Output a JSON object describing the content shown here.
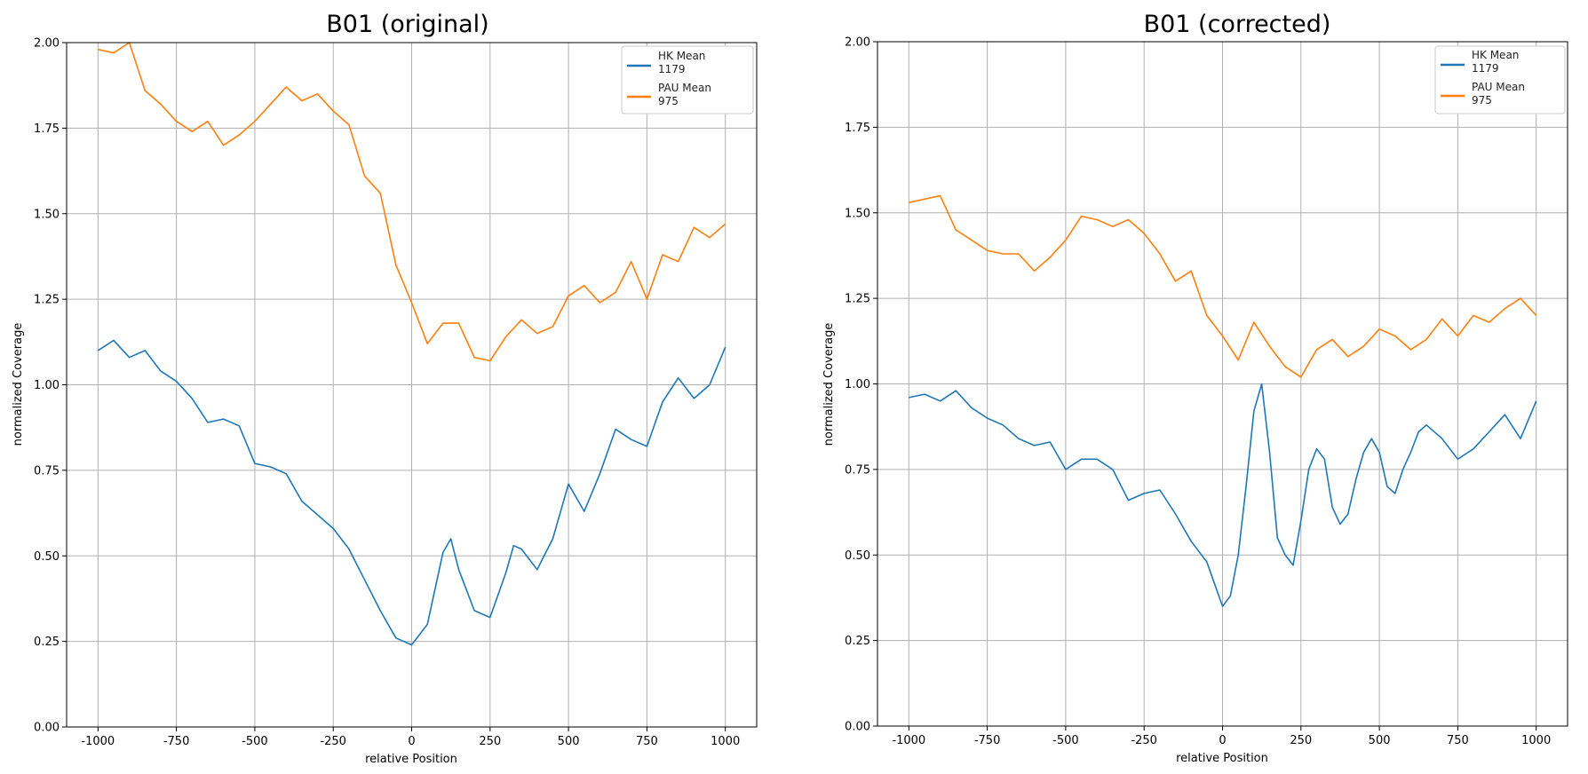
{
  "chart_data": [
    {
      "type": "line",
      "title": "B01 (original)",
      "xlabel": "relative Position",
      "ylabel": "normalized Coverage",
      "xlim": [
        -1100,
        1100
      ],
      "ylim": [
        0,
        2
      ],
      "xticks": [
        -1000,
        -750,
        -500,
        -250,
        0,
        250,
        500,
        750,
        1000
      ],
      "xtick_labels": [
        "-1000",
        "-750",
        "-500",
        "-250",
        "0",
        "250",
        "500",
        "750",
        "1000"
      ],
      "yticks": [
        0,
        0.25,
        0.5,
        0.75,
        1.0,
        1.25,
        1.5,
        1.75,
        2.0
      ],
      "ytick_labels": [
        "0.00",
        "0.25",
        "0.50",
        "0.75",
        "1.00",
        "1.25",
        "1.50",
        "1.75",
        "2.00"
      ],
      "grid": true,
      "legend_position": "top-right",
      "series": [
        {
          "name_line1": "HK Mean",
          "name_line2": "1179",
          "color": "#1f77b4",
          "x": [
            -1000,
            -950,
            -900,
            -850,
            -800,
            -750,
            -700,
            -650,
            -600,
            -550,
            -500,
            -450,
            -400,
            -350,
            -300,
            -250,
            -200,
            -150,
            -100,
            -50,
            0,
            50,
            100,
            125,
            150,
            200,
            250,
            300,
            325,
            350,
            400,
            450,
            500,
            550,
            600,
            650,
            700,
            750,
            800,
            850,
            900,
            950,
            1000
          ],
          "y": [
            1.1,
            1.13,
            1.08,
            1.1,
            1.04,
            1.01,
            0.96,
            0.89,
            0.9,
            0.88,
            0.77,
            0.76,
            0.74,
            0.66,
            0.62,
            0.58,
            0.52,
            0.43,
            0.34,
            0.26,
            0.24,
            0.3,
            0.51,
            0.55,
            0.46,
            0.34,
            0.32,
            0.45,
            0.53,
            0.52,
            0.46,
            0.55,
            0.71,
            0.63,
            0.74,
            0.87,
            0.84,
            0.82,
            0.95,
            1.02,
            0.96,
            1.0,
            1.11
          ]
        },
        {
          "name_line1": "PAU Mean",
          "name_line2": "975",
          "color": "#ff7f0e",
          "x": [
            -1000,
            -950,
            -900,
            -850,
            -800,
            -750,
            -700,
            -650,
            -600,
            -550,
            -500,
            -450,
            -400,
            -350,
            -300,
            -250,
            -200,
            -150,
            -100,
            -50,
            0,
            50,
            100,
            150,
            200,
            250,
            300,
            350,
            400,
            450,
            500,
            550,
            600,
            650,
            700,
            750,
            800,
            850,
            900,
            950,
            1000
          ],
          "y": [
            1.98,
            1.97,
            2.0,
            1.86,
            1.82,
            1.77,
            1.74,
            1.77,
            1.7,
            1.73,
            1.77,
            1.82,
            1.87,
            1.83,
            1.85,
            1.8,
            1.76,
            1.61,
            1.56,
            1.35,
            1.24,
            1.12,
            1.18,
            1.18,
            1.08,
            1.07,
            1.14,
            1.19,
            1.15,
            1.17,
            1.26,
            1.29,
            1.24,
            1.27,
            1.36,
            1.25,
            1.38,
            1.36,
            1.46,
            1.43,
            1.47
          ]
        }
      ]
    },
    {
      "type": "line",
      "title": "B01 (corrected)",
      "xlabel": "relative Position",
      "ylabel": "normalized Coverage",
      "xlim": [
        -1100,
        1100
      ],
      "ylim": [
        0,
        2
      ],
      "xticks": [
        -1000,
        -750,
        -500,
        -250,
        0,
        250,
        500,
        750,
        1000
      ],
      "xtick_labels": [
        "-1000",
        "-750",
        "-500",
        "-250",
        "0",
        "250",
        "500",
        "750",
        "1000"
      ],
      "yticks": [
        0,
        0.25,
        0.5,
        0.75,
        1.0,
        1.25,
        1.5,
        1.75,
        2.0
      ],
      "ytick_labels": [
        "0.00",
        "0.25",
        "0.50",
        "0.75",
        "1.00",
        "1.25",
        "1.50",
        "1.75",
        "2.00"
      ],
      "grid": true,
      "legend_position": "top-right",
      "series": [
        {
          "name_line1": "HK Mean",
          "name_line2": "1179",
          "color": "#1f77b4",
          "x": [
            -1000,
            -950,
            -900,
            -850,
            -800,
            -750,
            -700,
            -650,
            -600,
            -550,
            -500,
            -450,
            -400,
            -350,
            -300,
            -250,
            -200,
            -150,
            -100,
            -50,
            0,
            25,
            50,
            75,
            100,
            125,
            150,
            175,
            200,
            225,
            250,
            275,
            300,
            325,
            350,
            375,
            400,
            425,
            450,
            475,
            500,
            525,
            550,
            575,
            600,
            625,
            650,
            700,
            750,
            800,
            850,
            900,
            950,
            1000
          ],
          "y": [
            0.96,
            0.97,
            0.95,
            0.98,
            0.93,
            0.9,
            0.88,
            0.84,
            0.82,
            0.83,
            0.75,
            0.78,
            0.78,
            0.75,
            0.66,
            0.68,
            0.69,
            0.62,
            0.54,
            0.48,
            0.35,
            0.38,
            0.5,
            0.7,
            0.92,
            1.0,
            0.8,
            0.55,
            0.5,
            0.47,
            0.6,
            0.75,
            0.81,
            0.78,
            0.64,
            0.59,
            0.62,
            0.72,
            0.8,
            0.84,
            0.8,
            0.7,
            0.68,
            0.75,
            0.8,
            0.86,
            0.88,
            0.84,
            0.78,
            0.81,
            0.86,
            0.91,
            0.84,
            0.95
          ]
        },
        {
          "name_line1": "PAU Mean",
          "name_line2": "975",
          "color": "#ff7f0e",
          "x": [
            -1000,
            -950,
            -900,
            -850,
            -800,
            -750,
            -700,
            -650,
            -600,
            -550,
            -500,
            -450,
            -400,
            -350,
            -300,
            -250,
            -200,
            -150,
            -100,
            -50,
            0,
            50,
            100,
            150,
            200,
            250,
            300,
            350,
            400,
            450,
            500,
            550,
            600,
            650,
            700,
            750,
            800,
            850,
            900,
            950,
            1000
          ],
          "y": [
            1.53,
            1.54,
            1.55,
            1.45,
            1.42,
            1.39,
            1.38,
            1.38,
            1.33,
            1.37,
            1.42,
            1.49,
            1.48,
            1.46,
            1.48,
            1.44,
            1.38,
            1.3,
            1.33,
            1.2,
            1.14,
            1.07,
            1.18,
            1.11,
            1.05,
            1.02,
            1.1,
            1.13,
            1.08,
            1.11,
            1.16,
            1.14,
            1.1,
            1.13,
            1.19,
            1.14,
            1.2,
            1.18,
            1.22,
            1.25,
            1.2
          ]
        }
      ]
    }
  ]
}
